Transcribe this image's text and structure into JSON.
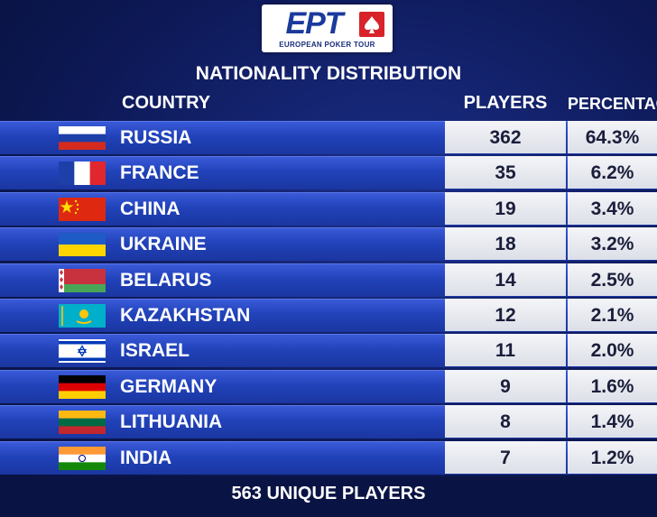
{
  "logo": {
    "mark": "EPT",
    "name": "EUROPEAN POKER TOUR"
  },
  "title": "NATIONALITY DISTRIBUTION",
  "table": {
    "headers": [
      "COUNTRY",
      "PLAYERS",
      "PERCENTAGE"
    ],
    "rows": [
      [
        "RUSSIA",
        "362",
        "64.3%"
      ],
      [
        "FRANCE",
        "35",
        "6.2%"
      ],
      [
        "CHINA",
        "19",
        "3.4%"
      ],
      [
        "UKRAINE",
        "18",
        "3.2%"
      ],
      [
        "BELARUS",
        "14",
        "2.5%"
      ],
      [
        "KAZAKHSTAN",
        "12",
        "2.1%"
      ],
      [
        "ISRAEL",
        "11",
        "2.0%"
      ],
      [
        "GERMANY",
        "9",
        "1.6%"
      ],
      [
        "LITHUANIA",
        "8",
        "1.4%"
      ],
      [
        "INDIA",
        "7",
        "1.2%"
      ]
    ]
  },
  "footer": "563 UNIQUE PLAYERS"
}
